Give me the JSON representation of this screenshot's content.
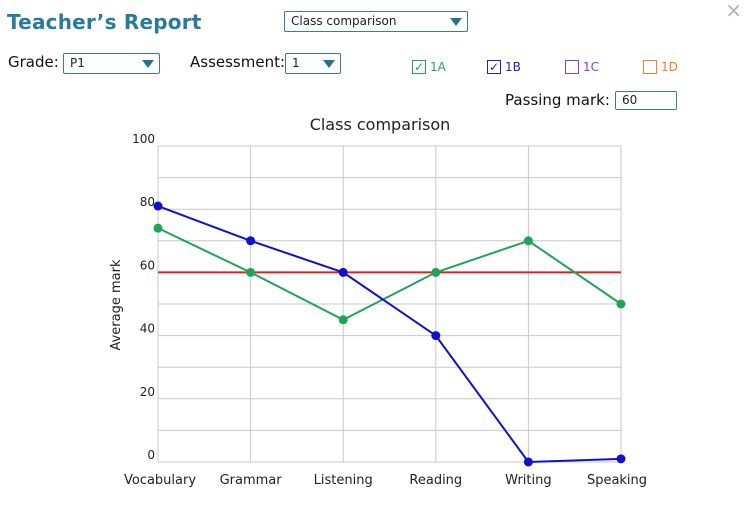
{
  "header": {
    "title": "Teacher’s Report",
    "view_select": "Class comparison",
    "close_glyph": "×"
  },
  "filters": {
    "grade_label": "Grade:",
    "grade_value": "P1",
    "assessment_label": "Assessment:",
    "assessment_value": "1",
    "passing_label": "Passing mark:",
    "passing_value": "60"
  },
  "classes": [
    {
      "label": "1A",
      "checked": true,
      "color": "#22a35a"
    },
    {
      "label": "1B",
      "checked": true,
      "color": "#2222bb"
    },
    {
      "label": "1C",
      "checked": false,
      "color": "#8a3bd1"
    },
    {
      "label": "1D",
      "checked": false,
      "color": "#e8842a"
    }
  ],
  "chart_data": {
    "type": "line",
    "title": "Class comparison",
    "ylabel": "Average mark",
    "xlabel": "",
    "ylim": [
      0,
      100
    ],
    "yticks": [
      0,
      20,
      40,
      60,
      80,
      100
    ],
    "categories": [
      "Vocabulary",
      "Grammar",
      "Listening",
      "Reading",
      "Writing",
      "Speaking"
    ],
    "series": [
      {
        "name": "1A",
        "color": "#22a35a",
        "values": [
          74,
          60,
          45,
          60,
          70,
          50
        ]
      },
      {
        "name": "1B",
        "color": "#1111cc",
        "values": [
          81,
          70,
          60,
          40,
          0,
          1
        ]
      }
    ],
    "passing_mark": 60,
    "passing_color": "#e02020",
    "grid": true
  }
}
